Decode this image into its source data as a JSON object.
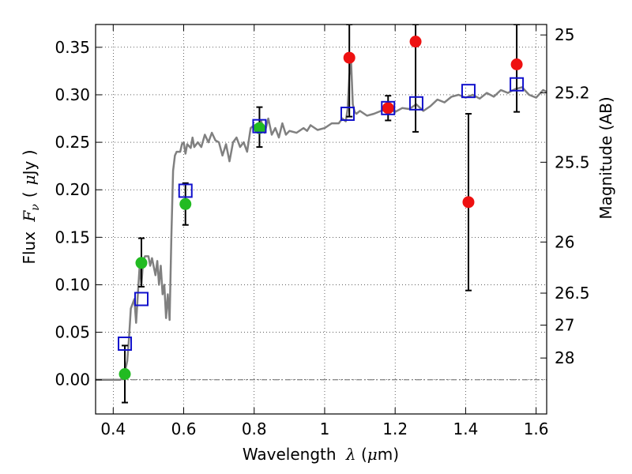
{
  "chart_data": {
    "type": "scatter",
    "xlabel": {
      "text": "Wavelength",
      "symbol": "λ",
      "open": "(",
      "unit_prefix": "μ",
      "unit": "m",
      "close": ")"
    },
    "ylabel": {
      "text": "Flux",
      "symbol": "F",
      "subscript": "ν",
      "open": "(",
      "unit_prefix": "μ",
      "unit": "Jy",
      "close": ")"
    },
    "y2label": "Magnitude (AB)",
    "xlim": [
      0.35,
      1.63
    ],
    "ylim": [
      -0.036,
      0.374
    ],
    "grid": true,
    "x_ticks": [
      0.4,
      0.6,
      0.8,
      1.0,
      1.2,
      1.4,
      1.6
    ],
    "x_tick_labels": [
      "0.4",
      "0.6",
      "0.8",
      "1",
      "1.2",
      "1.4",
      "1.6"
    ],
    "y_ticks": [
      0.0,
      0.05,
      0.1,
      0.15,
      0.2,
      0.25,
      0.3,
      0.35
    ],
    "y_tick_labels": [
      "0.00",
      "0.05",
      "0.10",
      "0.15",
      "0.20",
      "0.25",
      "0.30",
      "0.35"
    ],
    "mag_ticks": [
      {
        "label": "25",
        "flux": 0.363
      },
      {
        "label": "25.2",
        "flux": 0.302
      },
      {
        "label": "25.5",
        "flux": 0.229
      },
      {
        "label": "26",
        "flux": 0.145
      },
      {
        "label": "26.5",
        "flux": 0.0912
      },
      {
        "label": "27",
        "flux": 0.0575
      },
      {
        "label": "28",
        "flux": 0.0229
      }
    ],
    "colors": {
      "model": "#808080",
      "green": "#22bb22",
      "red": "#ee1111",
      "squares": "#1111cc",
      "errorbar": "#000000",
      "zero_line": "#666666"
    },
    "series": [
      {
        "name": "model_spectrum",
        "kind": "line",
        "x": [
          0.35,
          0.4,
          0.42,
          0.43,
          0.44,
          0.445,
          0.45,
          0.46,
          0.465,
          0.47,
          0.475,
          0.48,
          0.485,
          0.49,
          0.5,
          0.505,
          0.51,
          0.52,
          0.525,
          0.53,
          0.535,
          0.54,
          0.545,
          0.55,
          0.555,
          0.56,
          0.565,
          0.57,
          0.575,
          0.58,
          0.59,
          0.595,
          0.6,
          0.605,
          0.61,
          0.62,
          0.625,
          0.63,
          0.64,
          0.65,
          0.66,
          0.67,
          0.68,
          0.69,
          0.7,
          0.71,
          0.72,
          0.73,
          0.74,
          0.75,
          0.76,
          0.77,
          0.78,
          0.79,
          0.8,
          0.81,
          0.82,
          0.83,
          0.84,
          0.85,
          0.86,
          0.87,
          0.88,
          0.89,
          0.9,
          0.92,
          0.94,
          0.95,
          0.96,
          0.98,
          1.0,
          1.02,
          1.04,
          1.05,
          1.06,
          1.065,
          1.07,
          1.075,
          1.08,
          1.085,
          1.09,
          1.1,
          1.12,
          1.14,
          1.16,
          1.18,
          1.2,
          1.22,
          1.24,
          1.26,
          1.28,
          1.3,
          1.32,
          1.34,
          1.36,
          1.38,
          1.4,
          1.42,
          1.44,
          1.46,
          1.48,
          1.5,
          1.52,
          1.54,
          1.56,
          1.58,
          1.6,
          1.62,
          1.63
        ],
        "y": [
          0.0,
          0.0,
          0.0,
          0.003,
          0.02,
          0.045,
          0.075,
          0.085,
          0.06,
          0.09,
          0.12,
          0.1,
          0.125,
          0.13,
          0.13,
          0.12,
          0.128,
          0.11,
          0.125,
          0.1,
          0.12,
          0.09,
          0.1,
          0.065,
          0.09,
          0.063,
          0.15,
          0.22,
          0.236,
          0.24,
          0.24,
          0.248,
          0.25,
          0.238,
          0.248,
          0.244,
          0.255,
          0.245,
          0.25,
          0.245,
          0.258,
          0.25,
          0.26,
          0.252,
          0.25,
          0.236,
          0.248,
          0.23,
          0.25,
          0.255,
          0.245,
          0.25,
          0.24,
          0.265,
          0.268,
          0.26,
          0.272,
          0.26,
          0.275,
          0.258,
          0.265,
          0.255,
          0.27,
          0.258,
          0.262,
          0.26,
          0.265,
          0.262,
          0.268,
          0.263,
          0.265,
          0.27,
          0.27,
          0.275,
          0.272,
          0.285,
          0.32,
          0.335,
          0.29,
          0.282,
          0.28,
          0.283,
          0.278,
          0.28,
          0.283,
          0.285,
          0.282,
          0.286,
          0.285,
          0.29,
          0.283,
          0.288,
          0.295,
          0.292,
          0.298,
          0.3,
          0.297,
          0.3,
          0.296,
          0.302,
          0.298,
          0.305,
          0.302,
          0.306,
          0.308,
          0.3,
          0.297,
          0.305,
          0.303
        ]
      },
      {
        "name": "observed_ground",
        "kind": "points",
        "marker": "circle",
        "color": "green",
        "x": [
          0.433,
          0.48,
          0.605,
          0.815
        ],
        "y": [
          0.006,
          0.123,
          0.185,
          0.265
        ],
        "err": [
          null,
          null,
          null,
          null
        ]
      },
      {
        "name": "observed_ir",
        "kind": "points",
        "marker": "circle",
        "color": "red",
        "x": [
          1.07,
          1.18,
          1.258,
          1.408,
          1.545
        ],
        "y": [
          0.339,
          0.286,
          0.356,
          0.187,
          0.332
        ],
        "err": [
          null,
          null,
          null,
          null,
          null
        ]
      },
      {
        "name": "model_photometry",
        "kind": "points",
        "marker": "square",
        "color": "squares",
        "x": [
          0.433,
          0.48,
          0.605,
          0.815,
          1.065,
          1.18,
          1.26,
          1.408,
          1.545
        ],
        "y": [
          0.038,
          0.085,
          0.199,
          0.267,
          0.28,
          0.286,
          0.291,
          0.304,
          0.311
        ]
      }
    ],
    "errorbars": [
      {
        "x": 0.433,
        "lo": -0.024,
        "hi": 0.036
      },
      {
        "x": 0.48,
        "lo": 0.098,
        "hi": 0.149
      },
      {
        "x": 0.605,
        "lo": 0.163,
        "hi": 0.207
      },
      {
        "x": 0.815,
        "lo": 0.245,
        "hi": 0.287
      },
      {
        "x": 1.07,
        "lo": 0.277,
        "hi": 0.374
      },
      {
        "x": 1.18,
        "lo": 0.273,
        "hi": 0.299
      },
      {
        "x": 1.258,
        "lo": 0.261,
        "hi": 0.374
      },
      {
        "x": 1.408,
        "lo": 0.094,
        "hi": 0.28
      },
      {
        "x": 1.545,
        "lo": 0.282,
        "hi": 0.374
      }
    ]
  }
}
